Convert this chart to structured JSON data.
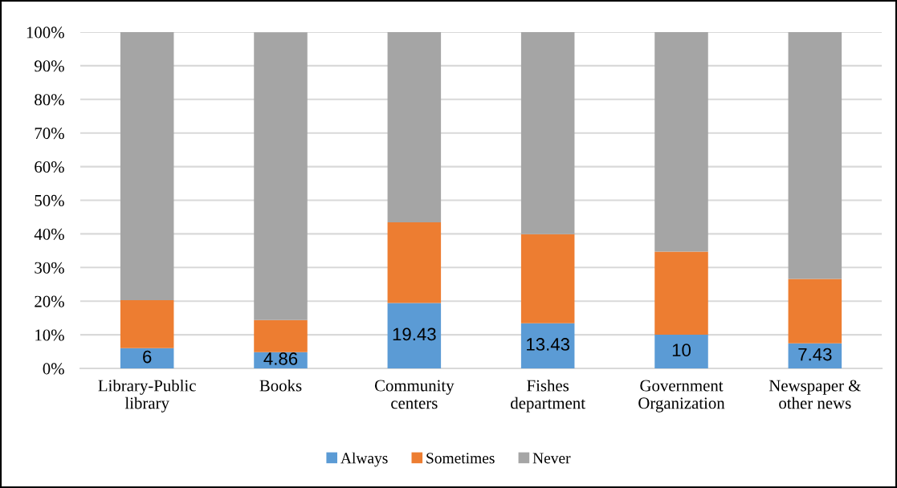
{
  "chart_data": {
    "type": "bar",
    "stacked": true,
    "categories": [
      "Library-Public\nlibrary",
      "Books",
      "Community\ncenters",
      "Fishes\ndepartment",
      "Government\nOrganization",
      "Newspaper &\nother news"
    ],
    "series": [
      {
        "name": "Always",
        "color": "#5b9bd5",
        "values": [
          6,
          4.86,
          19.43,
          13.43,
          10,
          7.43
        ],
        "value_labels": [
          "6",
          "4.86",
          "19.43",
          "13.43",
          "10",
          "7.43"
        ]
      },
      {
        "name": "Sometimes",
        "color": "#ed7d31",
        "values": [
          14.3,
          9.5,
          24.0,
          26.5,
          24.7,
          19.2
        ]
      },
      {
        "name": "Never",
        "color": "#a5a5a5",
        "values": [
          79.7,
          85.6,
          56.6,
          60.1,
          65.3,
          73.4
        ]
      }
    ],
    "ylim": [
      0,
      100
    ],
    "yticks": [
      {
        "value": 0,
        "label": "0%"
      },
      {
        "value": 10,
        "label": "10%"
      },
      {
        "value": 20,
        "label": "20%"
      },
      {
        "value": 30,
        "label": "30%"
      },
      {
        "value": 40,
        "label": "40%"
      },
      {
        "value": 50,
        "label": "50%"
      },
      {
        "value": 60,
        "label": "60%"
      },
      {
        "value": 70,
        "label": "70%"
      },
      {
        "value": 80,
        "label": "80%"
      },
      {
        "value": 90,
        "label": "90%"
      },
      {
        "value": 100,
        "label": "100%"
      }
    ],
    "grid": "y",
    "legend": "bottom"
  }
}
